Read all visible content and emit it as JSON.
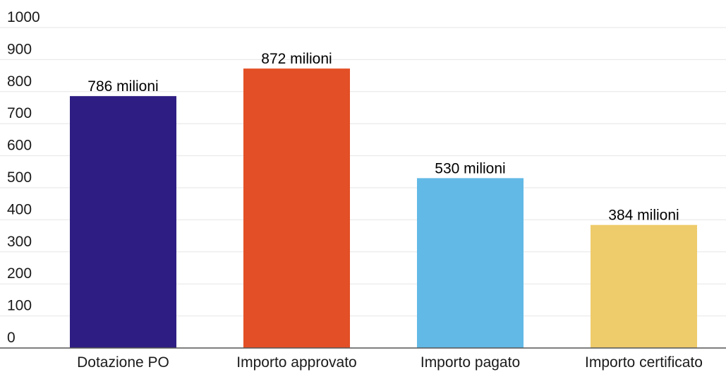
{
  "chart_data": {
    "type": "bar",
    "categories": [
      "Dotazione PO",
      "Importo approvato",
      "Importo pagato",
      "Importo certificato"
    ],
    "values": [
      786,
      872,
      530,
      384
    ],
    "data_labels": [
      "786 milioni",
      "872 milioni",
      "530 milioni",
      "384 milioni"
    ],
    "colors": [
      "#2e1e83",
      "#e34f26",
      "#62b9e6",
      "#eecb6b"
    ],
    "title": "",
    "xlabel": "",
    "ylabel": "",
    "ylim": [
      0,
      1000
    ],
    "yticks": [
      0,
      100,
      200,
      300,
      400,
      500,
      600,
      700,
      800,
      900,
      1000
    ],
    "grid": true,
    "legend": "none"
  }
}
